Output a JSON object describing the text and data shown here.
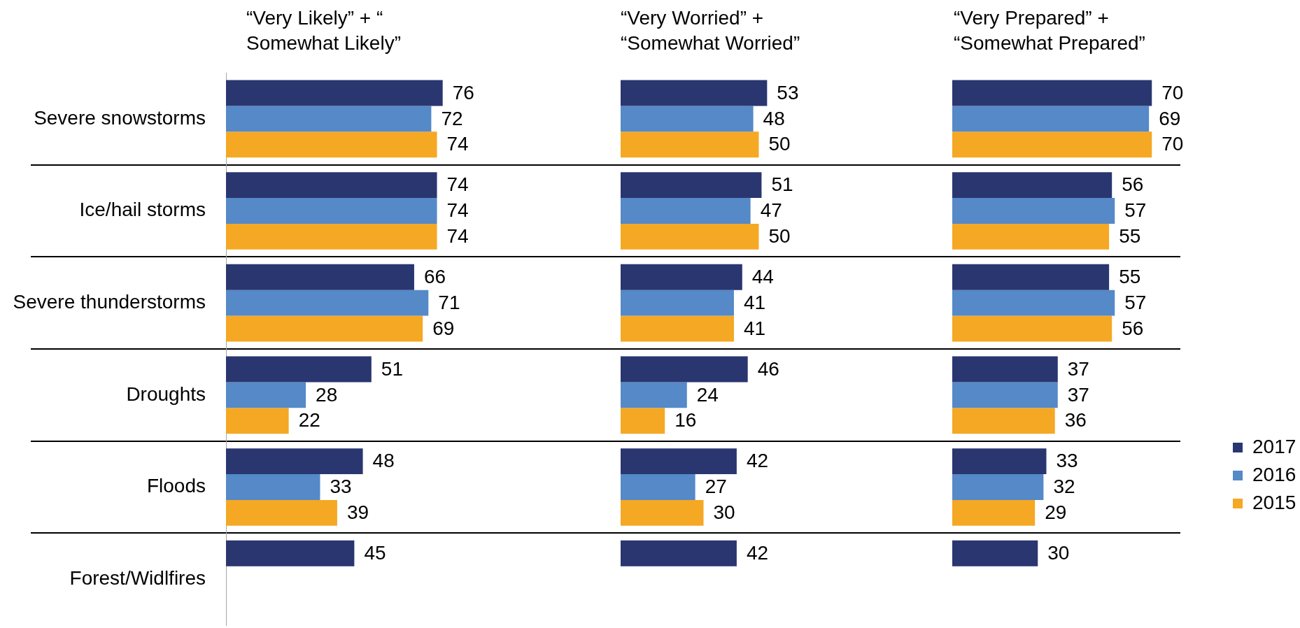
{
  "chart_data": [
    {
      "type": "bar",
      "orientation": "horizontal",
      "title": "“Very Likely” + “\nSomewhat Likely”",
      "categories": [
        "Severe snowstorms",
        "Ice/hail storms",
        "Severe thunderstorms",
        "Droughts",
        "Floods",
        "Forest/Widlfires"
      ],
      "series": [
        {
          "color": "#293670",
          "values": [
            76,
            74,
            66,
            51,
            48,
            45
          ]
        },
        {
          "color": "#5589c8",
          "values": [
            72,
            74,
            71,
            28,
            33,
            null
          ]
        },
        {
          "color": "#f5a823",
          "values": [
            74,
            74,
            69,
            22,
            39,
            null
          ]
        }
      ],
      "xlim": [
        0,
        80
      ],
      "data_labels": true,
      "grid": "y",
      "tick_labels": "y"
    },
    {
      "type": "bar",
      "orientation": "horizontal",
      "title": "“Very Worried” +\n“Somewhat Worried”",
      "categories": [
        null,
        null,
        null,
        null,
        null,
        null
      ],
      "series": [
        {
          "color": "#293670",
          "values": [
            53,
            51,
            44,
            46,
            42,
            42
          ]
        },
        {
          "color": "#5589c8",
          "values": [
            48,
            47,
            41,
            24,
            27,
            null
          ]
        },
        {
          "color": "#f5a823",
          "values": [
            50,
            50,
            41,
            16,
            30,
            null
          ]
        }
      ],
      "xlim": [
        0,
        80
      ],
      "data_labels": true,
      "grid": "y",
      "tick_labels": false
    },
    {
      "type": "bar",
      "orientation": "horizontal",
      "title": "“Very Prepared” +\n“Somewhat Prepared”",
      "categories": [
        null,
        null,
        null,
        null,
        null,
        null
      ],
      "series": [
        {
          "name": "2017",
          "color": "#293670",
          "values": [
            70,
            56,
            55,
            37,
            33,
            30
          ]
        },
        {
          "name": "2016",
          "color": "#5589c8",
          "values": [
            69,
            57,
            57,
            37,
            32,
            null
          ]
        },
        {
          "name": "2015",
          "color": "#f5a823",
          "values": [
            70,
            55,
            56,
            36,
            29,
            null
          ]
        }
      ],
      "xlim": [
        0,
        80
      ],
      "data_labels": true,
      "grid": "y",
      "tick_labels": false,
      "legend": "right"
    }
  ]
}
